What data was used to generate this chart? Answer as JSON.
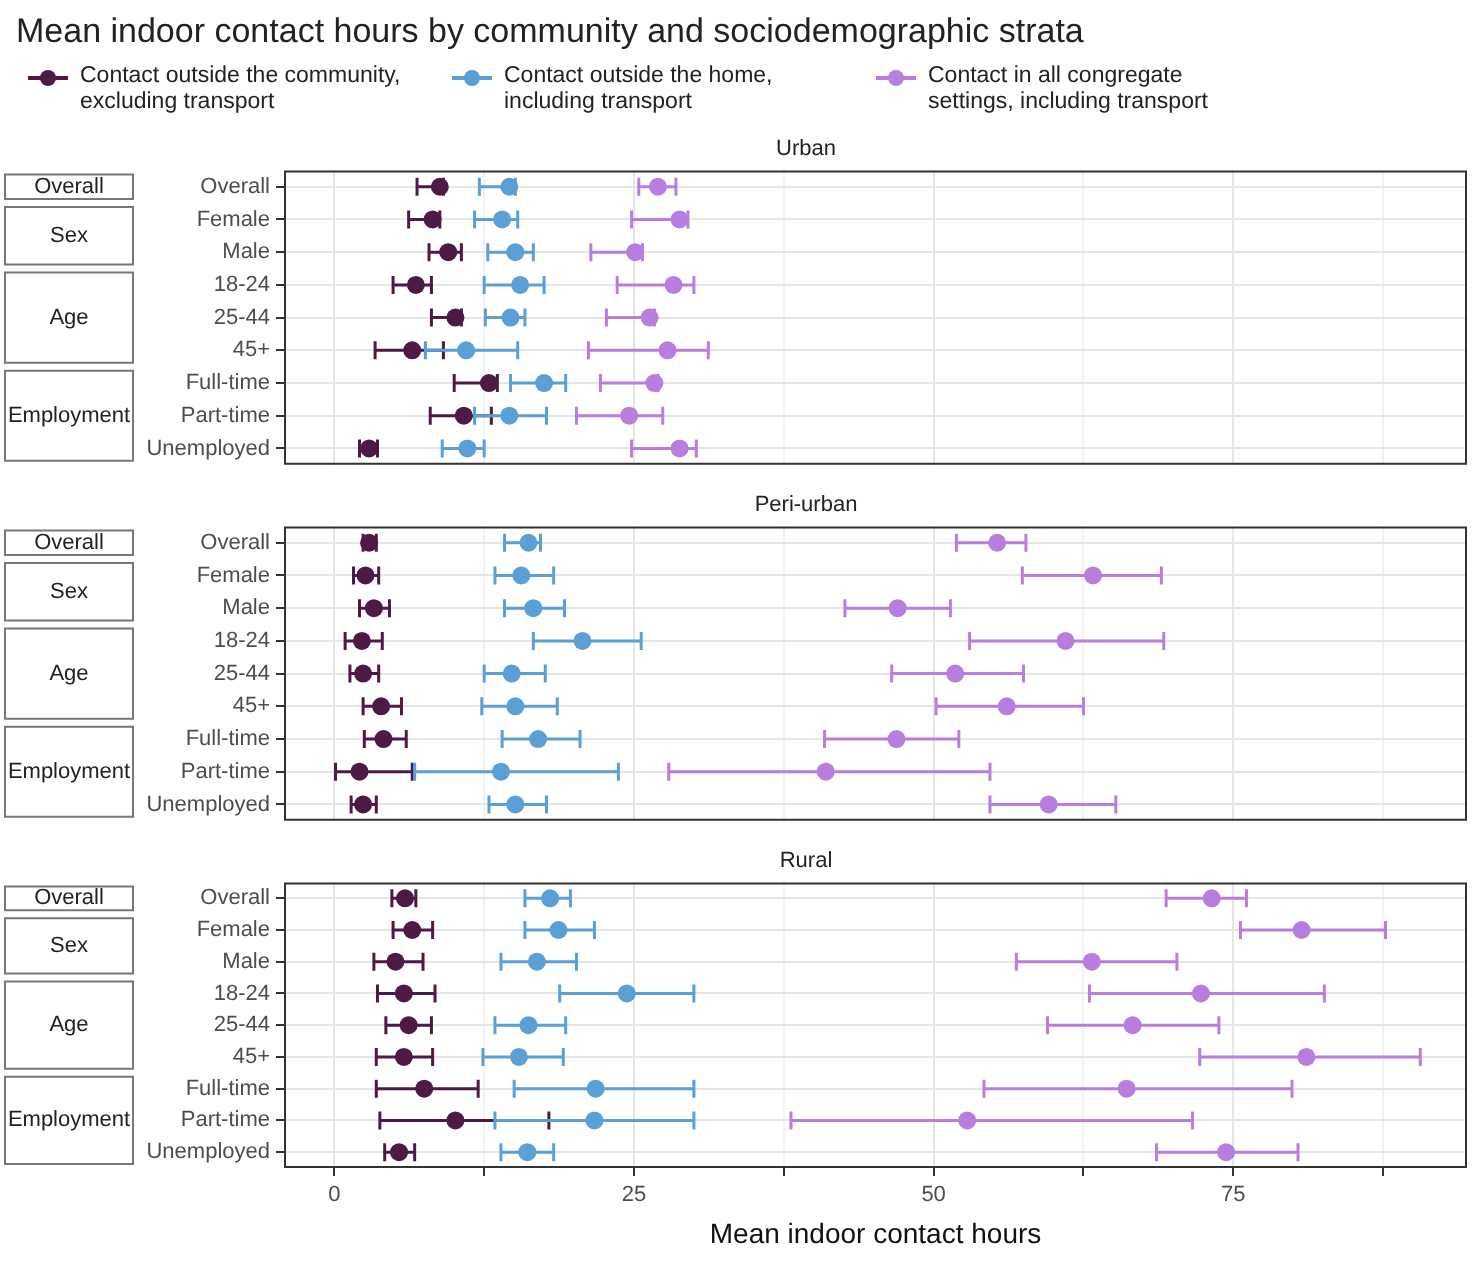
{
  "chart_data": [
    {
      "type": "scatter",
      "orientation": "horizontal",
      "title": "Mean indoor contact hours by community and sociodemographic strata",
      "subtitle": "Urban",
      "categories": [
        "Overall",
        "Female",
        "Male",
        "18-24",
        "25-44",
        "45+",
        "Full-time",
        "Part-time",
        "Unemployed"
      ],
      "annotations": [
        "Overall",
        "Sex",
        "Age",
        "Employment"
      ],
      "series": [
        {
          "name": "Contact outside the community, excluding transport",
          "color": "#4d1a46",
          "values": [
            8.8,
            8.2,
            9.5,
            6.8,
            10.1,
            6.5,
            12.9,
            10.8,
            2.9
          ],
          "errors": [
            [
              6.9,
              9.1
            ],
            [
              6.2,
              8.8
            ],
            [
              7.9,
              10.6
            ],
            [
              4.9,
              8.1
            ],
            [
              8.1,
              10.6
            ],
            [
              3.4,
              9.1
            ],
            [
              10.0,
              13.6
            ],
            [
              8.0,
              13.1
            ],
            [
              2.1,
              3.6
            ]
          ]
        },
        {
          "name": "Contact outside the home, including transport",
          "color": "#5a9fd6",
          "values": [
            14.6,
            14.0,
            15.1,
            15.5,
            14.7,
            11.0,
            17.5,
            14.6,
            11.1
          ],
          "errors": [
            [
              12.1,
              15.1
            ],
            [
              11.7,
              15.3
            ],
            [
              12.8,
              16.6
            ],
            [
              12.5,
              17.5
            ],
            [
              12.6,
              15.9
            ],
            [
              7.6,
              15.3
            ],
            [
              14.7,
              19.3
            ],
            [
              11.7,
              17.7
            ],
            [
              9.0,
              12.5
            ]
          ]
        },
        {
          "name": "Contact in all congregate settings, including transport",
          "color": "#b77ee0",
          "values": [
            27.0,
            28.8,
            25.1,
            28.3,
            26.3,
            27.8,
            26.7,
            24.6,
            28.8
          ],
          "errors": [
            [
              25.4,
              28.5
            ],
            [
              24.8,
              29.5
            ],
            [
              21.4,
              25.7
            ],
            [
              23.6,
              30.0
            ],
            [
              22.7,
              26.7
            ],
            [
              21.2,
              31.2
            ],
            [
              22.2,
              27.0
            ],
            [
              20.2,
              27.4
            ],
            [
              24.8,
              30.2
            ]
          ]
        }
      ],
      "xlim": [
        -4.2,
        94.5
      ],
      "xticks": [
        0,
        {
          "value": 12.5,
          "label": null
        },
        25,
        {
          "value": 37.5,
          "label": null
        },
        50,
        {
          "value": 62.5,
          "label": null
        },
        75,
        {
          "value": 87.5,
          "label": null
        }
      ],
      "grid": true,
      "legend": "top",
      "marker": "circle",
      "tick_labels": "y"
    },
    {
      "type": "scatter",
      "orientation": "horizontal",
      "subtitle": "Peri-urban",
      "categories": [
        "Overall",
        "Female",
        "Male",
        "18-24",
        "25-44",
        "45+",
        "Full-time",
        "Part-time",
        "Unemployed"
      ],
      "annotations": [
        "Overall",
        "Sex",
        "Age",
        "Employment"
      ],
      "series": [
        {
          "color": "#4d1a46",
          "values": [
            2.9,
            2.6,
            3.3,
            2.3,
            2.4,
            3.9,
            4.1,
            2.1,
            2.4
          ],
          "errors": [
            [
              2.4,
              3.5
            ],
            [
              1.6,
              3.7
            ],
            [
              2.1,
              4.6
            ],
            [
              0.9,
              4.0
            ],
            [
              1.3,
              3.7
            ],
            [
              2.4,
              5.6
            ],
            [
              2.5,
              6.0
            ],
            [
              0.1,
              6.5
            ],
            [
              1.4,
              3.5
            ]
          ]
        },
        {
          "color": "#5a9fd6",
          "values": [
            16.2,
            15.6,
            16.6,
            20.7,
            14.8,
            15.1,
            17.0,
            13.9,
            15.1
          ],
          "errors": [
            [
              14.2,
              17.2
            ],
            [
              13.4,
              18.3
            ],
            [
              14.2,
              19.2
            ],
            [
              16.6,
              25.6
            ],
            [
              12.5,
              17.6
            ],
            [
              12.3,
              18.6
            ],
            [
              14.0,
              20.5
            ],
            [
              6.7,
              23.7
            ],
            [
              12.9,
              17.7
            ]
          ]
        },
        {
          "color": "#b77ee0",
          "values": [
            55.3,
            63.3,
            47.0,
            61.0,
            51.8,
            56.1,
            46.9,
            41.0,
            59.6
          ],
          "errors": [
            [
              51.9,
              57.7
            ],
            [
              57.4,
              69.0
            ],
            [
              42.6,
              51.4
            ],
            [
              53.0,
              69.2
            ],
            [
              46.5,
              57.5
            ],
            [
              50.2,
              62.5
            ],
            [
              40.9,
              52.1
            ],
            [
              27.9,
              54.7
            ],
            [
              54.7,
              65.2
            ]
          ]
        }
      ],
      "xlim": [
        -4.2,
        94.5
      ],
      "xticks": [
        0,
        {
          "value": 12.5,
          "label": null
        },
        25,
        {
          "value": 37.5,
          "label": null
        },
        50,
        {
          "value": 62.5,
          "label": null
        },
        75,
        {
          "value": 87.5,
          "label": null
        }
      ],
      "grid": true,
      "marker": "circle",
      "tick_labels": "y"
    },
    {
      "type": "scatter",
      "orientation": "horizontal",
      "subtitle": "Rural",
      "xlabel": "Mean indoor contact hours",
      "categories": [
        "Overall",
        "Female",
        "Male",
        "18-24",
        "25-44",
        "45+",
        "Full-time",
        "Part-time",
        "Unemployed"
      ],
      "annotations": [
        "Overall",
        "Sex",
        "Age",
        "Employment"
      ],
      "series": [
        {
          "color": "#4d1a46",
          "values": [
            5.9,
            6.5,
            5.1,
            5.8,
            6.2,
            5.8,
            7.5,
            10.1,
            5.4
          ],
          "errors": [
            [
              4.8,
              6.8
            ],
            [
              4.9,
              8.2
            ],
            [
              3.3,
              7.4
            ],
            [
              3.6,
              8.4
            ],
            [
              4.3,
              8.1
            ],
            [
              3.5,
              8.2
            ],
            [
              3.5,
              12.0
            ],
            [
              3.8,
              17.9
            ],
            [
              4.2,
              6.7
            ]
          ]
        },
        {
          "color": "#5a9fd6",
          "values": [
            18.0,
            18.7,
            16.9,
            24.4,
            16.2,
            15.4,
            21.8,
            21.7,
            16.1
          ],
          "errors": [
            [
              15.9,
              19.7
            ],
            [
              15.9,
              21.7
            ],
            [
              13.9,
              20.2
            ],
            [
              18.8,
              30.0
            ],
            [
              13.4,
              19.3
            ],
            [
              12.4,
              19.1
            ],
            [
              15.0,
              30.0
            ],
            [
              13.4,
              30.0
            ],
            [
              13.9,
              18.3
            ]
          ]
        },
        {
          "color": "#b77ee0",
          "values": [
            73.2,
            80.7,
            63.2,
            72.3,
            66.6,
            81.1,
            66.1,
            52.8,
            74.4
          ],
          "errors": [
            [
              69.4,
              76.1
            ],
            [
              75.6,
              87.7
            ],
            [
              56.9,
              70.3
            ],
            [
              63.0,
              82.6
            ],
            [
              59.5,
              73.8
            ],
            [
              72.2,
              90.6
            ],
            [
              54.2,
              79.9
            ],
            [
              38.1,
              71.6
            ],
            [
              68.6,
              80.4
            ]
          ]
        }
      ],
      "xlim": [
        -4.2,
        94.5
      ],
      "xticks": [
        0,
        {
          "value": 12.5,
          "label": null
        },
        25,
        {
          "value": 37.5,
          "label": null
        },
        50,
        {
          "value": 62.5,
          "label": null
        },
        75,
        {
          "value": 87.5,
          "label": null
        }
      ],
      "grid": true,
      "marker": "circle"
    }
  ]
}
